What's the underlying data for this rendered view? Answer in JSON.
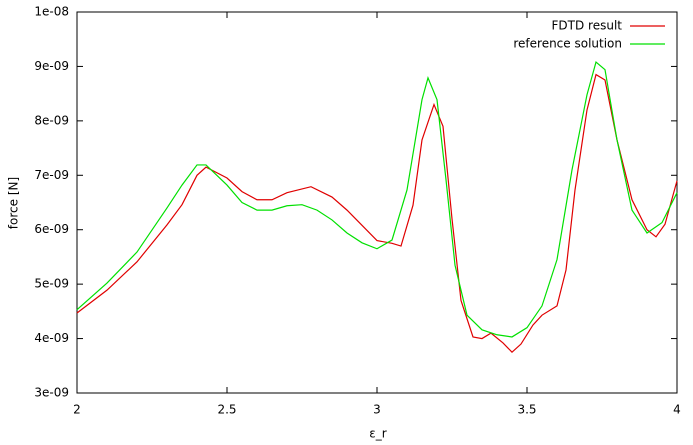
{
  "chart_data": {
    "type": "line",
    "x_label": "ε_r",
    "y_label": "force [N]",
    "xlim": [
      2,
      4
    ],
    "xticks": [
      2,
      2.5,
      3,
      3.5,
      4
    ],
    "ylim": [
      3e-09,
      1e-08
    ],
    "yticks": [
      {
        "value": 3e-09,
        "label": "3e-09"
      },
      {
        "value": 4e-09,
        "label": "4e-09"
      },
      {
        "value": 5e-09,
        "label": "5e-09"
      },
      {
        "value": 6e-09,
        "label": "6e-09"
      },
      {
        "value": 7e-09,
        "label": "7e-09"
      },
      {
        "value": 8e-09,
        "label": "8e-09"
      },
      {
        "value": 9e-09,
        "label": "9e-09"
      },
      {
        "value": 1e-08,
        "label": "1e-08"
      }
    ],
    "legend": "top-right",
    "series": [
      {
        "name": "FDTD result",
        "color": "#e00000",
        "x": [
          2.0,
          2.1,
          2.2,
          2.3,
          2.35,
          2.4,
          2.43,
          2.5,
          2.55,
          2.6,
          2.65,
          2.7,
          2.78,
          2.85,
          2.9,
          3.0,
          3.05,
          3.08,
          3.12,
          3.15,
          3.19,
          3.22,
          3.25,
          3.28,
          3.32,
          3.35,
          3.38,
          3.42,
          3.45,
          3.48,
          3.52,
          3.55,
          3.6,
          3.63,
          3.66,
          3.7,
          3.73,
          3.76,
          3.8,
          3.85,
          3.9,
          3.93,
          3.96,
          4.0
        ],
        "values": [
          4.47e-09,
          4.89e-09,
          5.41e-09,
          6.09e-09,
          6.46e-09,
          7e-09,
          7.15e-09,
          6.95e-09,
          6.7e-09,
          6.55e-09,
          6.55e-09,
          6.68e-09,
          6.79e-09,
          6.6e-09,
          6.36e-09,
          5.8e-09,
          5.75e-09,
          5.7e-09,
          6.45e-09,
          7.65e-09,
          8.3e-09,
          7.9e-09,
          6.2e-09,
          4.7e-09,
          4.03e-09,
          4e-09,
          4.1e-09,
          3.92e-09,
          3.75e-09,
          3.9e-09,
          4.25e-09,
          4.43e-09,
          4.6e-09,
          5.26e-09,
          6.73e-09,
          8.2e-09,
          8.85e-09,
          8.75e-09,
          7.65e-09,
          6.55e-09,
          6e-09,
          5.87e-09,
          6.1e-09,
          6.9e-09
        ]
      },
      {
        "name": "reference solution",
        "color": "#00e000",
        "x": [
          2.0,
          2.1,
          2.2,
          2.3,
          2.35,
          2.4,
          2.43,
          2.5,
          2.55,
          2.6,
          2.65,
          2.7,
          2.75,
          2.8,
          2.85,
          2.9,
          2.95,
          3.0,
          3.05,
          3.1,
          3.15,
          3.17,
          3.2,
          3.23,
          3.26,
          3.3,
          3.35,
          3.4,
          3.45,
          3.5,
          3.55,
          3.6,
          3.65,
          3.7,
          3.73,
          3.76,
          3.8,
          3.85,
          3.9,
          3.95,
          4.0
        ],
        "values": [
          4.53e-09,
          5.02e-09,
          5.59e-09,
          6.4e-09,
          6.82e-09,
          7.19e-09,
          7.19e-09,
          6.82e-09,
          6.5e-09,
          6.36e-09,
          6.36e-09,
          6.44e-09,
          6.46e-09,
          6.36e-09,
          6.18e-09,
          5.94e-09,
          5.76e-09,
          5.65e-09,
          5.81e-09,
          6.73e-09,
          8.39e-09,
          8.79e-09,
          8.39e-09,
          6.92e-09,
          5.35e-09,
          4.43e-09,
          4.16e-09,
          4.07e-09,
          4.03e-09,
          4.2e-09,
          4.6e-09,
          5.45e-09,
          7.1e-09,
          8.48e-09,
          9.08e-09,
          8.94e-09,
          7.65e-09,
          6.36e-09,
          5.94e-09,
          6.13e-09,
          6.68e-09
        ]
      }
    ]
  }
}
